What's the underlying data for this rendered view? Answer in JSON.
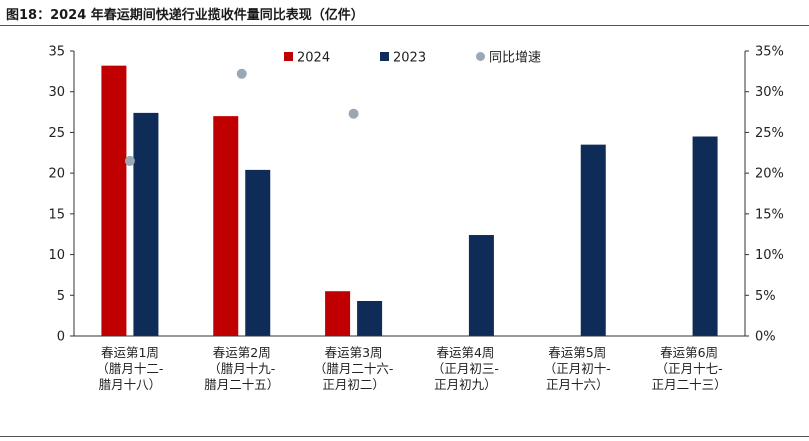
{
  "figure_title": "图18：2024 年春运期间快递行业揽收件量同比表现（亿件）",
  "colors": {
    "s2024": "#c00000",
    "s2023": "#0f2b57",
    "yoy": "#9aa7b4",
    "axis": "#333333"
  },
  "chart_data": {
    "type": "bar",
    "title": "",
    "categories": [
      [
        "春运第1周",
        "（腊月十二-",
        "腊月十八）"
      ],
      [
        "春运第2周",
        "（腊月十九-",
        "腊月二十五）"
      ],
      [
        "春运第3周",
        "（腊月二十六-",
        "正月初二）"
      ],
      [
        "春运第4周",
        "（正月初三-",
        "正月初九）"
      ],
      [
        "春运第5周",
        "（正月初十-",
        "正月十六）"
      ],
      [
        "春运第6周",
        "（正月十七-",
        "正月二十三）"
      ]
    ],
    "series": [
      {
        "name": "2024",
        "type": "bar",
        "axis": "left",
        "values": [
          33.2,
          27.0,
          5.5,
          null,
          null,
          null
        ]
      },
      {
        "name": "2023",
        "type": "bar",
        "axis": "left",
        "values": [
          27.4,
          20.4,
          4.3,
          12.4,
          23.5,
          24.5
        ]
      },
      {
        "name": "同比增速",
        "type": "scatter",
        "axis": "right",
        "values": [
          21.5,
          32.2,
          27.3,
          null,
          null,
          null
        ]
      }
    ],
    "ylim_left": [
      0,
      35
    ],
    "yticks_left": [
      "0",
      "5",
      "10",
      "15",
      "20",
      "25",
      "30",
      "35"
    ],
    "ylim_right": [
      0,
      35
    ],
    "yticks_right": [
      "0%",
      "5%",
      "10%",
      "15%",
      "20%",
      "25%",
      "30%",
      "35%"
    ],
    "legend_position": "top-center",
    "grid": false
  }
}
